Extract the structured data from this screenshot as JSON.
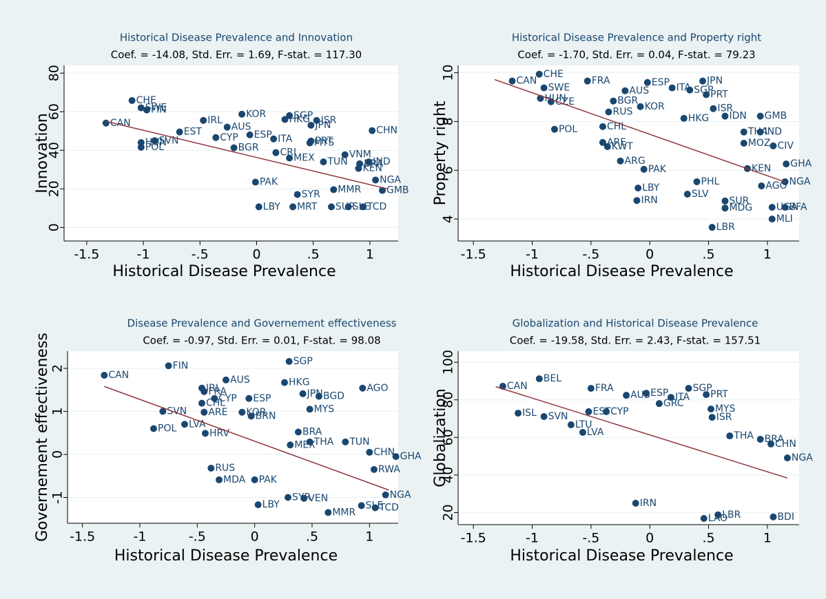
{
  "chart_data": [
    {
      "type": "scatter",
      "title": "Historical Disease Prevalence and  Innovation",
      "subtitle": "Coef. = -14.08, Std. Err. =  1.69,  F-stat. = 117.30",
      "xlabel": "Historical Disease Prevalence",
      "ylabel": "Innovation",
      "color": "#1a476f",
      "grid": true,
      "xlim": [
        -1.7,
        1.25
      ],
      "ylim": [
        -7,
        84
      ],
      "xticks": [
        -1.5,
        -1,
        {
          "value": -0.5,
          "label": "-.5"
        },
        0,
        {
          "value": 0.5,
          "label": ".5"
        },
        1
      ],
      "yticks": [
        0,
        20,
        40,
        60,
        80
      ],
      "labels": [
        "CHE",
        "CAN",
        "SWE",
        "FIN",
        "KOR",
        "SGP",
        "HKG",
        "ISR",
        "JPN",
        "IRL",
        "AUS",
        "ESP",
        "CYP",
        "ITA",
        "PRT",
        "MYS",
        "CHN",
        "EST",
        "POL",
        "SVN",
        "HUN",
        "IND",
        "BRA",
        "PAK",
        "SYR",
        "MMR",
        "LBY",
        "MRT",
        "SUR",
        "SLE",
        "TCD",
        "VNM",
        "MEX",
        "TUN",
        "NGA",
        "KEN",
        "GMB",
        "BGR",
        "CRI"
      ],
      "x": [
        -1.1,
        -1.33,
        -1.02,
        -0.97,
        -0.13,
        0.29,
        0.25,
        0.53,
        0.48,
        -0.47,
        -0.26,
        -0.06,
        -0.36,
        0.15,
        0.48,
        0.47,
        1.02,
        -0.68,
        -1.02,
        -0.9,
        -1.02,
        0.99,
        0.91,
        -0.01,
        0.36,
        0.68,
        0.02,
        0.32,
        0.66,
        0.81,
        0.94,
        0.78,
        0.29,
        0.59,
        1.05,
        0.9,
        1.11,
        -0.2,
        0.17
      ],
      "values": [
        65.8,
        54.1,
        62,
        60.9,
        58.7,
        58,
        56,
        55.5,
        53,
        55.5,
        52,
        48,
        46.6,
        45.9,
        44.8,
        43.8,
        50.2,
        49.5,
        41.6,
        45,
        44,
        34,
        33,
        23.5,
        17.1,
        19.6,
        10.7,
        10.7,
        10.7,
        10.7,
        10.7,
        37.7,
        36,
        34,
        24.6,
        30.6,
        19.2,
        41.3,
        38.8
      ],
      "fit_line": {
        "color": "#90353b",
        "x": [
          -1.33,
          1.15
        ],
        "y": [
          55,
          20.1
        ]
      }
    },
    {
      "type": "scatter",
      "title": "Historical Disease Prevalence and  Property right",
      "subtitle": "Coef. = -1.70, Std. Err. =  0.04,  F-stat. = 79.23",
      "xlabel": "Historical Disease Prevalence",
      "ylabel": "Property right",
      "color": "#1a476f",
      "grid": true,
      "xlim": [
        -1.63,
        1.27
      ],
      "ylim": [
        3.1,
        10.3
      ],
      "xticks": [
        -1.5,
        -1,
        {
          "value": -0.5,
          "label": "-.5"
        },
        0,
        {
          "value": 0.5,
          "label": ".5"
        },
        1
      ],
      "yticks": [
        4,
        6,
        8,
        10
      ],
      "labels": [
        "CAN",
        "CHE",
        "SWE",
        "HUN",
        "CZE",
        "FRA",
        "ESP",
        "JPN",
        "ITA",
        "AUS",
        "SGP",
        "PRT",
        "BGR",
        "RUS",
        "KOR",
        "POL",
        "CHL",
        "ISR",
        "IDN",
        "GMB",
        "HKG",
        "THA",
        "IND",
        "ARE",
        "KWT",
        "MOZ",
        "CIV",
        "ARG",
        "PAK",
        "KEN",
        "GHA",
        "NGA",
        "IRN",
        "LBY",
        "SLV",
        "AGO",
        "SUR",
        "MDG",
        "UGA",
        "BFA",
        "MLI",
        "LBR",
        "PHL"
      ],
      "x": [
        -1.17,
        -0.94,
        -0.9,
        -0.93,
        -0.84,
        -0.53,
        -0.02,
        0.45,
        0.19,
        -0.21,
        0.34,
        0.48,
        -0.31,
        -0.35,
        -0.08,
        -0.81,
        -0.4,
        0.54,
        0.64,
        0.94,
        0.29,
        0.8,
        0.94,
        -0.4,
        -0.36,
        0.8,
        1.05,
        -0.25,
        -0.05,
        0.83,
        1.16,
        1.15,
        -0.11,
        -0.1,
        0.32,
        0.95,
        0.64,
        0.64,
        1.04,
        1.15,
        1.04,
        0.53,
        0.4
      ],
      "values": [
        9.66,
        9.94,
        9.38,
        8.95,
        8.81,
        9.66,
        9.6,
        9.66,
        9.38,
        9.26,
        9.29,
        9.1,
        8.84,
        8.39,
        8.61,
        7.68,
        7.79,
        8.53,
        8.22,
        8.22,
        8.13,
        7.57,
        7.57,
        7.14,
        6.97,
        7.11,
        7.0,
        6.38,
        6.04,
        6.07,
        6.26,
        5.53,
        4.76,
        5.27,
        5.02,
        5.36,
        4.74,
        4.45,
        4.48,
        4.48,
        4.0,
        3.66,
        5.53
      ],
      "fit_line": {
        "color": "#90353b",
        "x": [
          -1.32,
          1.15
        ],
        "y": [
          9.72,
          5.52
        ]
      }
    },
    {
      "type": "scatter",
      "title": "Disease Prevalence and Governement effectiveness",
      "subtitle": "Coef. = -0.97, Std. Err. =  0.01,  F-stat. = 98.08",
      "xlabel": "Historical Disease Prevalence",
      "ylabel": "Governement effectiveness",
      "color": "#1a476f",
      "grid": true,
      "xlim": [
        -1.63,
        1.25
      ],
      "ylim": [
        -1.6,
        2.4
      ],
      "xticks": [
        -1.5,
        -1,
        {
          "value": -0.5,
          "label": "-.5"
        },
        0,
        {
          "value": 0.5,
          "label": ".5"
        },
        1
      ],
      "yticks": [
        -1,
        0,
        1,
        2
      ],
      "labels": [
        "CAN",
        "FIN",
        "AUS",
        "SGP",
        "HKG",
        "AGO",
        "JPN",
        "BGD",
        "MYS",
        "CYP",
        "ESP",
        "IRL",
        "FRA",
        "CHL",
        "ARE",
        "SVN",
        "POL",
        "LVA",
        "KOR",
        "BRN",
        "HRV",
        "TUN",
        "THA",
        "BRA",
        "MEX",
        "CHN",
        "GHA",
        "RWA",
        "PAK",
        "MDA",
        "LBY",
        "SYR",
        "VEN",
        "MMR",
        "SLE",
        "TCD",
        "NGA",
        "RUS"
      ],
      "x": [
        -1.31,
        -0.75,
        -0.25,
        0.3,
        0.26,
        0.94,
        0.42,
        0.56,
        0.48,
        -0.35,
        -0.05,
        -0.46,
        -0.44,
        -0.46,
        -0.44,
        -0.8,
        -0.88,
        -0.61,
        -0.11,
        -0.03,
        -0.43,
        0.79,
        0.48,
        0.38,
        0.31,
        1.0,
        1.23,
        1.04,
        0.0,
        -0.31,
        0.03,
        0.29,
        0.43,
        0.64,
        0.93,
        1.05,
        1.14,
        -0.38
      ],
      "values": [
        1.84,
        2.06,
        1.73,
        2.16,
        1.67,
        1.54,
        1.41,
        1.35,
        1.05,
        1.3,
        1.3,
        1.54,
        1.46,
        1.19,
        0.98,
        1.0,
        0.6,
        0.7,
        0.98,
        0.89,
        0.49,
        0.29,
        0.29,
        0.52,
        0.22,
        0.05,
        -0.05,
        -0.35,
        -0.59,
        -0.59,
        -1.17,
        -1.0,
        -1.02,
        -1.35,
        -1.19,
        -1.24,
        -0.94,
        -0.32
      ],
      "fit_line": {
        "color": "#90353b",
        "x": [
          -1.31,
          1.17
        ],
        "y": [
          1.58,
          -0.83
        ]
      }
    },
    {
      "type": "scatter",
      "title": "Globalization and  Historical Disease Prevalence",
      "subtitle": "Coef. = -19.58, Std. Err. =  2.43,  F-stat. = 157.51",
      "xlabel": "Historical Disease Prevalence",
      "ylabel": "Globalization",
      "color": "#1a476f",
      "grid": true,
      "xlim": [
        -1.63,
        1.27
      ],
      "ylim": [
        13.6,
        105.9
      ],
      "xticks": [
        -1.5,
        -1,
        {
          "value": -0.5,
          "label": "-.5"
        },
        0,
        {
          "value": 0.5,
          "label": ".5"
        },
        1
      ],
      "yticks": [
        20,
        40,
        60,
        80,
        100
      ],
      "labels": [
        "CAN",
        "ISL",
        "SVN",
        "BEL",
        "FRA",
        "AUS",
        "ESP",
        "ITA",
        "GRC",
        "SGP",
        "PRT",
        "MYS",
        "ISR",
        "EST",
        "CYP",
        "LTU",
        "LVA",
        "THA",
        "BRA",
        "CHN",
        "NGA",
        "IRN",
        "LAO",
        "LBR",
        "BDI"
      ],
      "x": [
        -1.25,
        -1.12,
        -0.9,
        -0.94,
        -0.5,
        -0.2,
        -0.03,
        0.18,
        0.08,
        0.33,
        0.48,
        0.52,
        0.53,
        -0.52,
        -0.37,
        -0.67,
        -0.57,
        0.68,
        0.94,
        1.03,
        1.17,
        -0.12,
        0.46,
        0.58,
        1.05
      ],
      "values": [
        87.2,
        72.9,
        71.1,
        91.2,
        86.1,
        82.4,
        83.5,
        81.3,
        78.0,
        86.1,
        82.8,
        75.1,
        70.7,
        73.7,
        73.7,
        66.7,
        62.7,
        60.8,
        59.0,
        56.5,
        49.1,
        25.0,
        16.9,
        18.8,
        17.7
      ],
      "fit_line": {
        "color": "#90353b",
        "x": [
          -1.31,
          1.17
        ],
        "y": [
          87,
          38.4
        ]
      }
    }
  ]
}
